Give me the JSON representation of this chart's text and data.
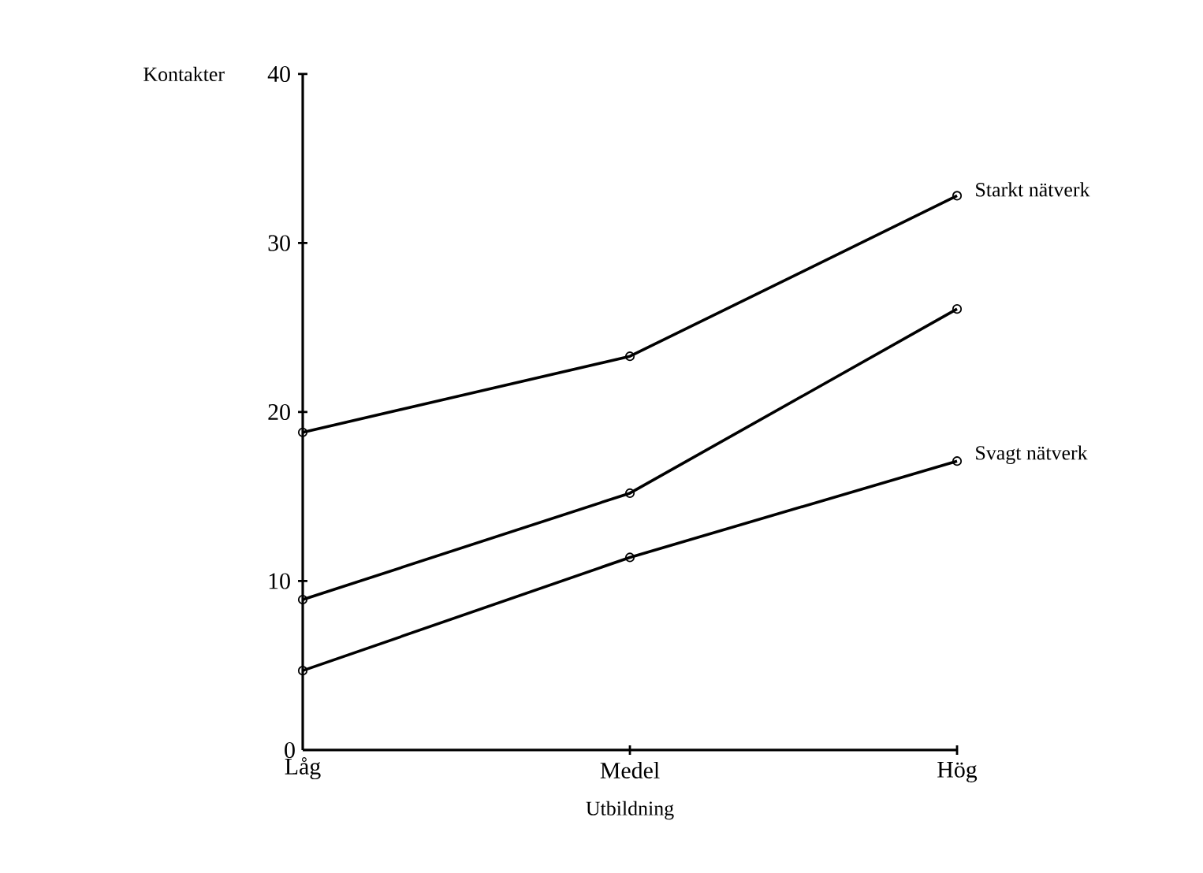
{
  "chart_data": {
    "type": "line",
    "xlabel": "Utbildning",
    "ylabel": "Kontakter",
    "categories": [
      "Låg",
      "Medel",
      "Hög"
    ],
    "series": [
      {
        "name": "Starkt nätverk",
        "color": "#000000",
        "values": [
          18.8,
          23.3,
          32.8
        ]
      },
      {
        "color": "#000000",
        "values": [
          8.9,
          15.2,
          26.1
        ]
      },
      {
        "name": "Svagt nätverk",
        "color": "#000000",
        "values": [
          4.7,
          11.4,
          17.1
        ]
      }
    ],
    "ylim": [
      0,
      40
    ],
    "yticks": [
      0,
      10,
      20,
      30,
      40
    ],
    "grid": false,
    "marker": "circle",
    "line_style": "solid"
  }
}
